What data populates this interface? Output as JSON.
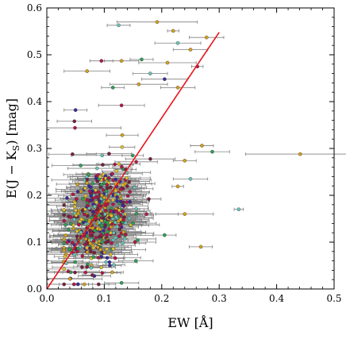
{
  "chart_data": {
    "type": "scatter",
    "xlabel": "EW [Å]",
    "ylabel": "E(J − K_S) [mag]",
    "xlim": [
      0.0,
      0.5
    ],
    "ylim": [
      0.0,
      0.6
    ],
    "xticks": [
      "0.0",
      "0.1",
      "0.2",
      "0.3",
      "0.4",
      "0.5"
    ],
    "yticks": [
      "0.0",
      "0.1",
      "0.2",
      "0.3",
      "0.4",
      "0.5",
      "0.6"
    ],
    "xtick_values": [
      0.0,
      0.1,
      0.2,
      0.3,
      0.4,
      0.5
    ],
    "ytick_values": [
      0.0,
      0.1,
      0.2,
      0.3,
      0.4,
      0.5,
      0.6
    ],
    "grid": false,
    "fit_line": {
      "x": [
        0.0,
        0.3
      ],
      "y": [
        0.0,
        0.548
      ],
      "color": "#e8131a"
    },
    "errorbar_color": "#808080",
    "point_colors": [
      "#b5164a",
      "#3c2a9a",
      "#d6a11a",
      "#2e9e57",
      "#6bc4b8",
      "#7a1f3d",
      "#e0c030"
    ],
    "cluster": {
      "n_points": 560,
      "x_center": 0.09,
      "x_spread": 0.03,
      "y_center": 0.15,
      "y_spread": 0.055,
      "typical_xerr": 0.035
    },
    "outliers": [
      {
        "x": 0.441,
        "y": 0.288,
        "xerr": 0.095,
        "color": "#d6a11a"
      },
      {
        "x": 0.125,
        "y": 0.563,
        "xerr": 0.02,
        "color": "#6bc4b8"
      },
      {
        "x": 0.192,
        "y": 0.57,
        "xerr": 0.07,
        "color": "#d6a11a"
      },
      {
        "x": 0.22,
        "y": 0.551,
        "xerr": 0.01,
        "color": "#d6a11a"
      },
      {
        "x": 0.278,
        "y": 0.537,
        "xerr": 0.03,
        "color": "#d6a11a"
      },
      {
        "x": 0.228,
        "y": 0.525,
        "xerr": 0.04,
        "color": "#6bc4b8"
      },
      {
        "x": 0.25,
        "y": 0.511,
        "xerr": 0.03,
        "color": "#d6a11a"
      },
      {
        "x": 0.095,
        "y": 0.487,
        "xerr": 0.02,
        "color": "#b5164a"
      },
      {
        "x": 0.13,
        "y": 0.487,
        "xerr": 0.03,
        "color": "#d6a11a"
      },
      {
        "x": 0.165,
        "y": 0.49,
        "xerr": 0.02,
        "color": "#2e9e57"
      },
      {
        "x": 0.21,
        "y": 0.483,
        "xerr": 0.05,
        "color": "#d6a11a"
      },
      {
        "x": 0.262,
        "y": 0.475,
        "xerr": 0.01,
        "color": "#b5164a"
      },
      {
        "x": 0.07,
        "y": 0.465,
        "xerr": 0.04,
        "color": "#d6a11a"
      },
      {
        "x": 0.18,
        "y": 0.46,
        "xerr": 0.03,
        "color": "#6bc4b8"
      },
      {
        "x": 0.205,
        "y": 0.448,
        "xerr": 0.04,
        "color": "#3c2a9a"
      },
      {
        "x": 0.16,
        "y": 0.437,
        "xerr": 0.05,
        "color": "#d6a11a"
      },
      {
        "x": 0.115,
        "y": 0.43,
        "xerr": 0.02,
        "color": "#2e9e57"
      },
      {
        "x": 0.228,
        "y": 0.43,
        "xerr": 0.03,
        "color": "#d6a11a"
      },
      {
        "x": 0.13,
        "y": 0.392,
        "xerr": 0.04,
        "color": "#b5164a"
      },
      {
        "x": 0.05,
        "y": 0.382,
        "xerr": 0.02,
        "color": "#3c2a9a"
      },
      {
        "x": 0.048,
        "y": 0.358,
        "xerr": 0.03,
        "color": "#7a1f3d"
      },
      {
        "x": 0.049,
        "y": 0.344,
        "xerr": 0.08,
        "color": "#b5164a"
      },
      {
        "x": 0.27,
        "y": 0.306,
        "xerr": 0.02,
        "color": "#d6a11a"
      },
      {
        "x": 0.288,
        "y": 0.293,
        "xerr": 0.03,
        "color": "#2e9e57"
      },
      {
        "x": 0.24,
        "y": 0.274,
        "xerr": 0.02,
        "color": "#d6a11a"
      },
      {
        "x": 0.25,
        "y": 0.235,
        "xerr": 0.03,
        "color": "#6bc4b8"
      },
      {
        "x": 0.228,
        "y": 0.219,
        "xerr": 0.01,
        "color": "#d6a11a"
      },
      {
        "x": 0.334,
        "y": 0.17,
        "xerr": 0.008,
        "color": "#6bc4b8"
      },
      {
        "x": 0.24,
        "y": 0.16,
        "xerr": 0.05,
        "color": "#d6a11a"
      },
      {
        "x": 0.205,
        "y": 0.115,
        "xerr": 0.02,
        "color": "#2e9e57"
      },
      {
        "x": 0.268,
        "y": 0.09,
        "xerr": 0.02,
        "color": "#d6a11a"
      },
      {
        "x": 0.155,
        "y": 0.06,
        "xerr": 0.03,
        "color": "#2e9e57"
      },
      {
        "x": 0.13,
        "y": 0.013,
        "xerr": 0.03,
        "color": "#2e9e57"
      }
    ]
  }
}
